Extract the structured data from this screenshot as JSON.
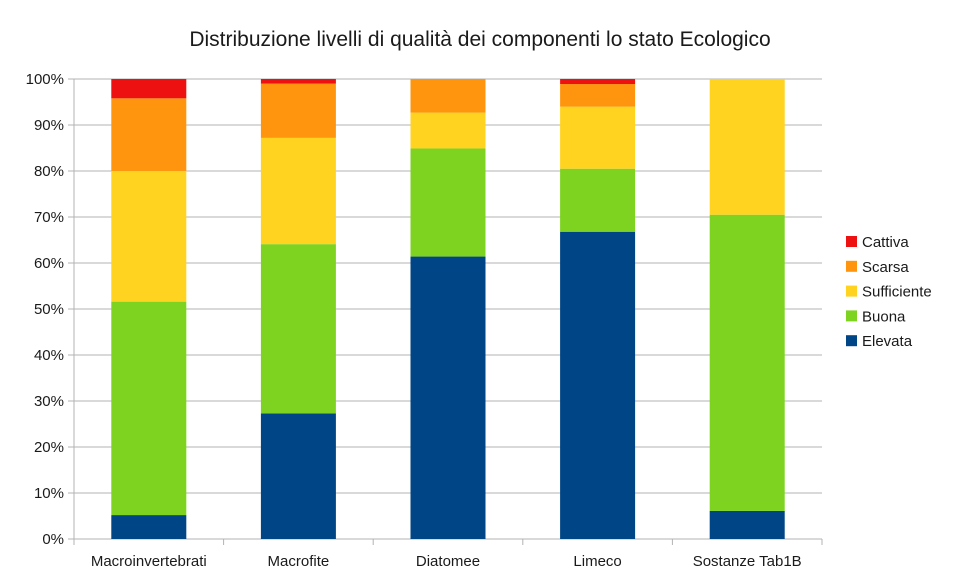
{
  "chart_data": {
    "type": "bar",
    "stacked": true,
    "percent_stacked": true,
    "title": "Distribuzione livelli di qualità dei componenti lo stato Ecologico",
    "xlabel": "",
    "ylabel": "",
    "ylim": [
      0,
      100
    ],
    "y_ticks": [
      "0%",
      "10%",
      "20%",
      "30%",
      "40%",
      "50%",
      "60%",
      "70%",
      "80%",
      "90%",
      "100%"
    ],
    "grid": true,
    "legend_position": "right",
    "categories": [
      "Macroinvertebrati",
      "Macrofite",
      "Diatomee",
      "Limeco",
      "Sostanze Tab1B"
    ],
    "series": [
      {
        "name": "Elevata",
        "color": "#004586",
        "values": [
          5.2,
          27.3,
          61.4,
          66.8,
          6.1
        ]
      },
      {
        "name": "Buona",
        "color": "#7ed321",
        "values": [
          46.4,
          36.8,
          23.5,
          13.7,
          64.4
        ]
      },
      {
        "name": "Sufficiente",
        "color": "#ffd320",
        "values": [
          28.4,
          23.1,
          7.8,
          13.5,
          29.5
        ]
      },
      {
        "name": "Scarsa",
        "color": "#ff950e",
        "values": [
          15.8,
          11.8,
          7.3,
          4.9,
          0
        ]
      },
      {
        "name": "Cattiva",
        "color": "#ee1111",
        "values": [
          4.2,
          1.0,
          0,
          1.1,
          0
        ]
      }
    ],
    "legend_order": [
      "Cattiva",
      "Scarsa",
      "Sufficiente",
      "Buona",
      "Elevata"
    ]
  }
}
